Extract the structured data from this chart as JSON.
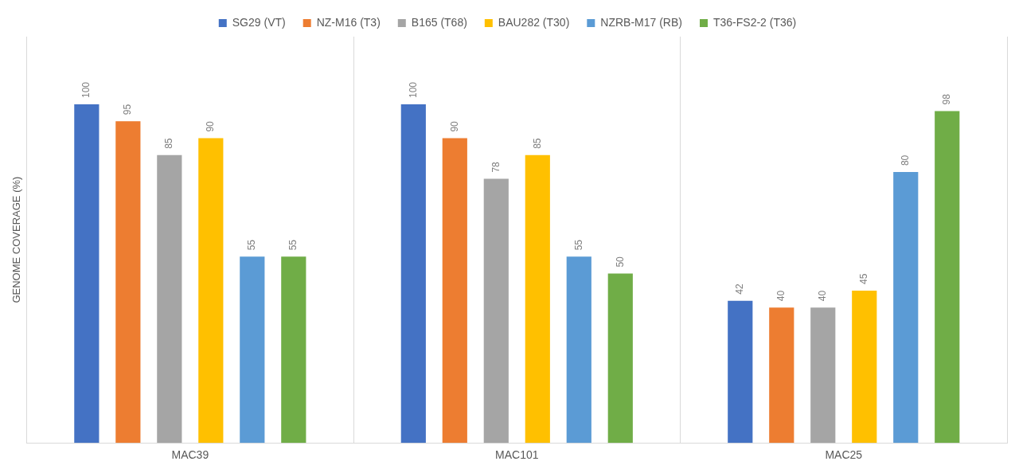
{
  "chart_data": {
    "type": "bar",
    "ylabel": "GENOME COVERAGE (%)",
    "categories": [
      "MAC39",
      "MAC101",
      "MAC25"
    ],
    "series": [
      {
        "name": "SG29 (VT)",
        "color": "#4472c4",
        "values": [
          100,
          100,
          42
        ]
      },
      {
        "name": "NZ-M16 (T3)",
        "color": "#ed7d31",
        "values": [
          95,
          90,
          40
        ]
      },
      {
        "name": "B165 (T68)",
        "color": "#a5a5a5",
        "values": [
          85,
          78,
          40
        ]
      },
      {
        "name": "BAU282 (T30)",
        "color": "#ffc000",
        "values": [
          90,
          85,
          45
        ]
      },
      {
        "name": "NZRB-M17 (RB)",
        "color": "#5b9bd5",
        "values": [
          55,
          55,
          80
        ]
      },
      {
        "name": "T36-FS2-2 (T36)",
        "color": "#70ad47",
        "values": [
          55,
          50,
          98
        ]
      }
    ],
    "data_labels": true,
    "grid": "x",
    "legend": "top"
  }
}
